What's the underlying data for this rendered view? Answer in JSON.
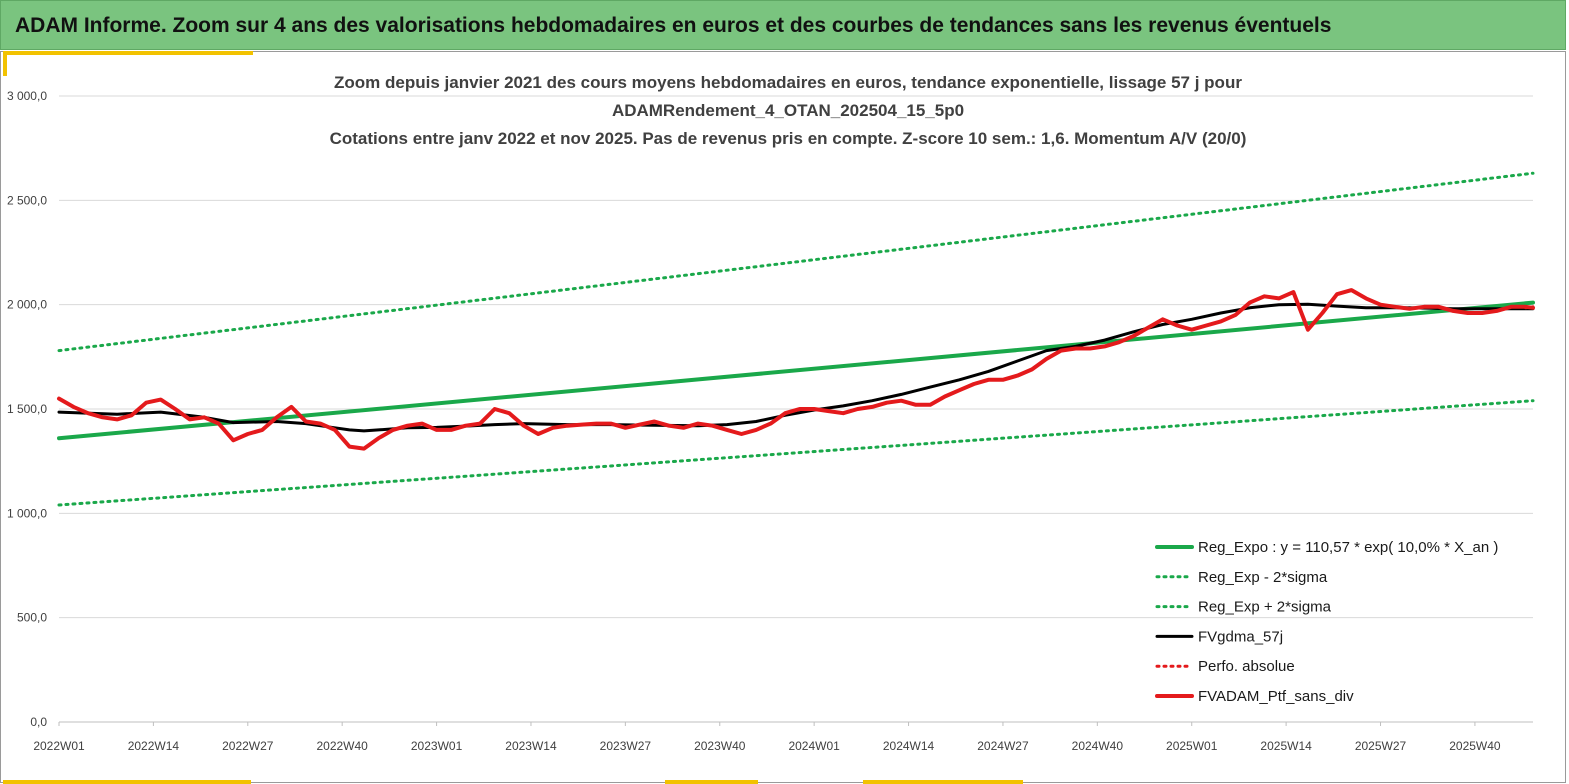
{
  "header": {
    "title": "ADAM Informe. Zoom sur 4 ans des valorisations hebdomadaires en euros et des courbes de tendances sans les revenus éventuels"
  },
  "chart_data": {
    "type": "line",
    "title_lines": [
      "Zoom depuis janvier 2021 des cours moyens hebdomadaires  en euros, tendance exponentielle, lissage 57 j pour",
      "ADAMRendement_4_OTAN_202504_15_5p0",
      "Cotations  entre janv 2022 et nov 2025. Pas de revenus pris en compte. Z-score 10 sem.: 1,6. Momentum A/V (20/0)"
    ],
    "ylim": [
      0,
      3000
    ],
    "y_ticks": [
      "0,0",
      "500,0",
      "1 000,0",
      "1 500,0",
      "2 000,0",
      "2 500,0",
      "3 000,0"
    ],
    "x_ticks": [
      "2022W01",
      "2022W14",
      "2022W27",
      "2022W40",
      "2023W01",
      "2023W14",
      "2023W27",
      "2023W40",
      "2024W01",
      "2024W14",
      "2024W27",
      "2024W40",
      "2025W01",
      "2025W14",
      "2025W27",
      "2025W40"
    ],
    "weeks_total": 204,
    "grid": "horizontal",
    "legend_position": "bottom-right",
    "series": [
      {
        "name": "Reg_Expo : y = 110,57 * exp( 10,0% *  X_an )",
        "color": "#1aa84a",
        "style": "solid",
        "width": 4,
        "x": [
          0,
          203
        ],
        "y": [
          1360,
          2010
        ]
      },
      {
        "name": "Reg_Exp - 2*sigma",
        "color": "#1aa84a",
        "style": "dotted",
        "width": 3,
        "x": [
          0,
          203
        ],
        "y": [
          1040,
          1540
        ]
      },
      {
        "name": "Reg_Exp + 2*sigma",
        "color": "#1aa84a",
        "style": "dotted",
        "width": 3,
        "x": [
          0,
          203
        ],
        "y": [
          1780,
          2630
        ]
      },
      {
        "name": "FVgdma_57j",
        "color": "#000000",
        "style": "solid",
        "width": 3,
        "x": [
          0,
          8,
          14,
          20,
          24,
          30,
          34,
          38,
          40,
          42,
          44,
          48,
          52,
          56,
          60,
          64,
          70,
          76,
          82,
          88,
          92,
          96,
          100,
          104,
          108,
          112,
          116,
          120,
          124,
          128,
          132,
          136,
          140,
          144,
          148,
          152,
          156,
          160,
          164,
          168,
          172,
          176,
          180,
          186,
          192,
          198,
          203
        ],
        "y": [
          1485,
          1475,
          1485,
          1460,
          1435,
          1440,
          1430,
          1410,
          1400,
          1395,
          1400,
          1410,
          1412,
          1418,
          1425,
          1430,
          1425,
          1425,
          1422,
          1420,
          1425,
          1440,
          1470,
          1495,
          1515,
          1540,
          1570,
          1605,
          1640,
          1680,
          1730,
          1780,
          1800,
          1830,
          1870,
          1905,
          1930,
          1960,
          1985,
          2000,
          2002,
          1993,
          1985,
          1985,
          1980,
          1980,
          1980
        ]
      },
      {
        "name": "Perfo. absolue",
        "color": "#e41a1c",
        "style": "dotted",
        "width": 3,
        "x": [
          202,
          203
        ],
        "y": [
          1985,
          1990
        ]
      },
      {
        "name": "FVADAM_Ptf_sans_div",
        "color": "#e41a1c",
        "style": "solid",
        "width": 4,
        "x": [
          0,
          2,
          4,
          6,
          8,
          10,
          12,
          14,
          16,
          18,
          20,
          22,
          24,
          26,
          28,
          30,
          32,
          34,
          36,
          38,
          40,
          42,
          44,
          46,
          48,
          50,
          52,
          54,
          56,
          58,
          60,
          62,
          64,
          66,
          68,
          70,
          72,
          74,
          76,
          78,
          80,
          82,
          84,
          86,
          88,
          90,
          92,
          94,
          96,
          98,
          100,
          102,
          104,
          106,
          108,
          110,
          112,
          114,
          116,
          118,
          120,
          122,
          124,
          126,
          128,
          130,
          132,
          134,
          136,
          138,
          140,
          142,
          144,
          146,
          148,
          150,
          152,
          154,
          156,
          158,
          160,
          162,
          164,
          166,
          168,
          170,
          172,
          174,
          176,
          178,
          180,
          182,
          184,
          186,
          188,
          190,
          192,
          194,
          196,
          198,
          200,
          202,
          203
        ],
        "y": [
          1550,
          1510,
          1480,
          1460,
          1450,
          1470,
          1530,
          1545,
          1500,
          1450,
          1460,
          1430,
          1350,
          1380,
          1400,
          1460,
          1510,
          1440,
          1430,
          1400,
          1320,
          1310,
          1360,
          1400,
          1420,
          1430,
          1400,
          1400,
          1420,
          1430,
          1500,
          1480,
          1420,
          1380,
          1410,
          1420,
          1425,
          1430,
          1430,
          1410,
          1425,
          1440,
          1420,
          1410,
          1430,
          1420,
          1400,
          1380,
          1400,
          1430,
          1480,
          1500,
          1500,
          1490,
          1480,
          1500,
          1510,
          1530,
          1540,
          1520,
          1520,
          1560,
          1590,
          1620,
          1640,
          1640,
          1660,
          1690,
          1740,
          1780,
          1790,
          1790,
          1800,
          1820,
          1850,
          1890,
          1930,
          1900,
          1880,
          1900,
          1920,
          1950,
          2010,
          2040,
          2030,
          2060,
          1880,
          1960,
          2050,
          2070,
          2030,
          2000,
          1990,
          1980,
          1990,
          1990,
          1970,
          1960,
          1960,
          1970,
          1990,
          1990,
          1985
        ]
      }
    ]
  }
}
